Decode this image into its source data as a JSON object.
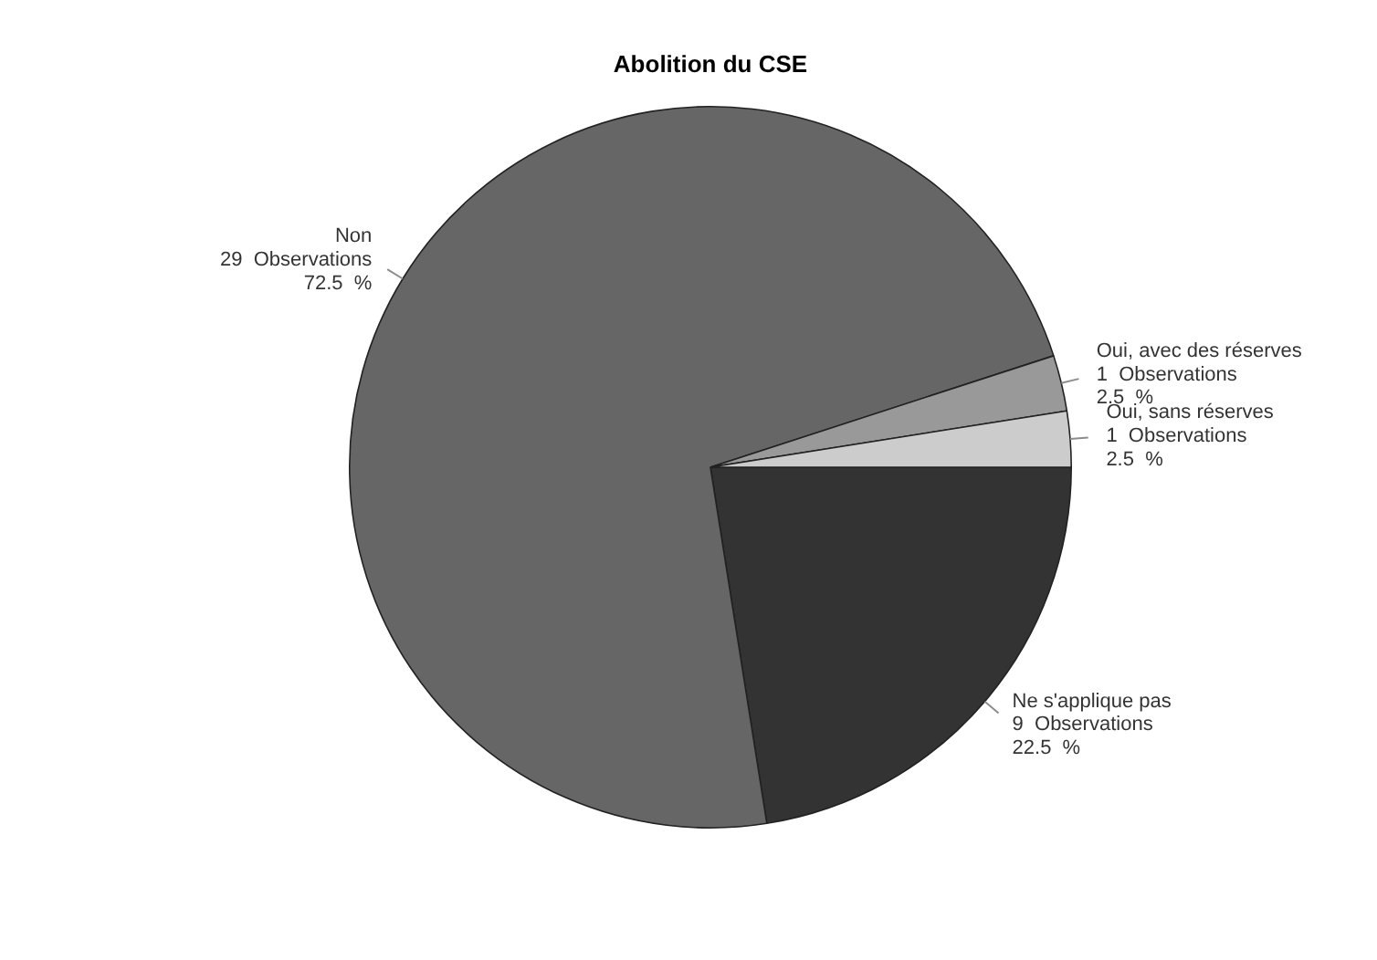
{
  "chart_data": {
    "type": "pie",
    "title": "Abolition du CSE",
    "categories": [
      "Ne s'applique pas",
      "Non",
      "Oui, avec des réserves",
      "Oui, sans réserves"
    ],
    "values": [
      9,
      29,
      1,
      1
    ],
    "value_labels": [
      "9  Observations\n22.5  %",
      "29  Observations\n72.5  %",
      "1  Observations\n2.5  %",
      "1  Observations\n2.5  %"
    ],
    "colors": [
      "#333333",
      "#666666",
      "#999999",
      "#cccccc"
    ],
    "legend": false
  }
}
